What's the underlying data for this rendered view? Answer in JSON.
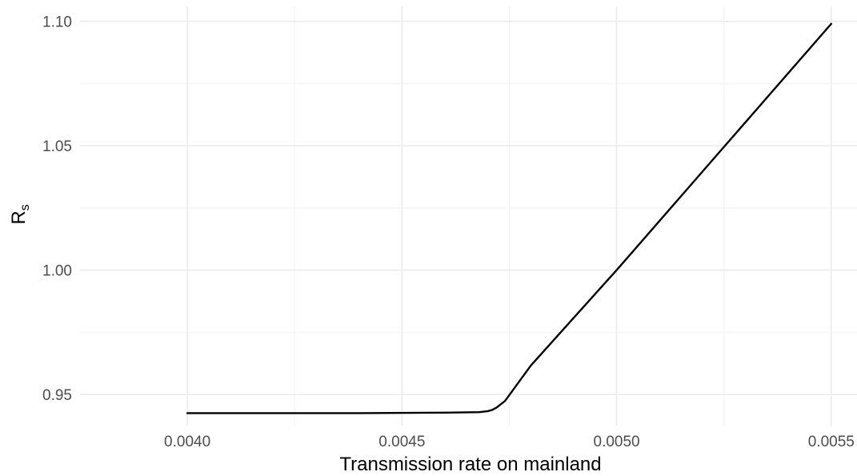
{
  "chart_data": {
    "type": "line",
    "xlabel": "Transmission rate on mainland",
    "ylabel": "R",
    "ylabel_subscript": "s",
    "xlim": [
      0.00375,
      0.00556
    ],
    "ylim": [
      0.9375,
      1.106
    ],
    "x_ticks": [
      {
        "value": 0.004,
        "label": "0.0040"
      },
      {
        "value": 0.0045,
        "label": "0.0045"
      },
      {
        "value": 0.005,
        "label": "0.0050"
      },
      {
        "value": 0.0055,
        "label": "0.0055"
      }
    ],
    "y_ticks": [
      {
        "value": 0.95,
        "label": "0.95"
      },
      {
        "value": 1.0,
        "label": "1.00"
      },
      {
        "value": 1.05,
        "label": "1.05"
      },
      {
        "value": 1.1,
        "label": "1.10"
      }
    ],
    "x_minor_ticks": [
      0.00425,
      0.00475,
      0.00525
    ],
    "y_minor_ticks": [
      0.975,
      1.025,
      1.075
    ],
    "grid": true,
    "series": [
      {
        "color": "#000000",
        "points": [
          {
            "x": 0.004,
            "y": 0.9425
          },
          {
            "x": 0.0042,
            "y": 0.9425
          },
          {
            "x": 0.0044,
            "y": 0.9425
          },
          {
            "x": 0.0046,
            "y": 0.9427
          },
          {
            "x": 0.00468,
            "y": 0.9429
          },
          {
            "x": 0.0047,
            "y": 0.9433
          },
          {
            "x": 0.00471,
            "y": 0.9438
          },
          {
            "x": 0.00472,
            "y": 0.9447
          },
          {
            "x": 0.00474,
            "y": 0.9474
          },
          {
            "x": 0.0048,
            "y": 0.9616
          },
          {
            "x": 0.0049,
            "y": 0.9808
          },
          {
            "x": 0.005,
            "y": 1.0
          },
          {
            "x": 0.0051,
            "y": 1.0198
          },
          {
            "x": 0.0052,
            "y": 1.0396
          },
          {
            "x": 0.0053,
            "y": 1.0594
          },
          {
            "x": 0.0054,
            "y": 1.0792
          },
          {
            "x": 0.0055,
            "y": 1.099
          }
        ]
      }
    ]
  }
}
